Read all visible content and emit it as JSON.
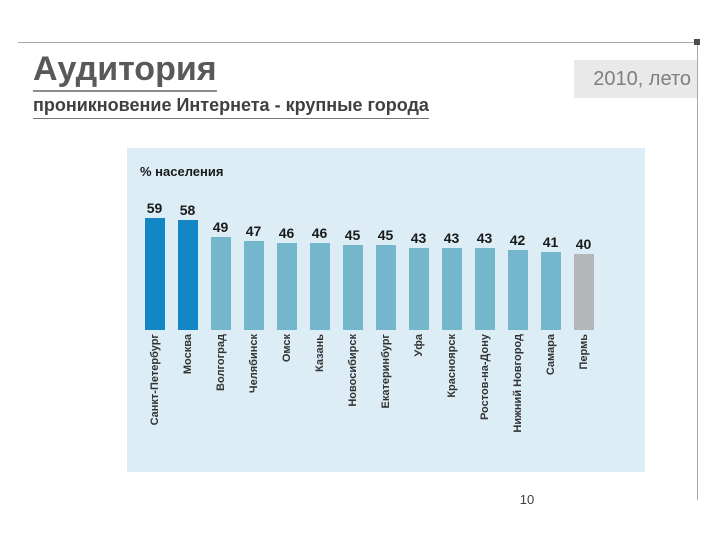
{
  "slide": {
    "title": "Аудитория",
    "subtitle": "проникновение Интернета - крупные города",
    "date_label": "2010, лето",
    "page_number": "10"
  },
  "chart_data": {
    "type": "bar",
    "title": "% населения",
    "categories": [
      "Санкт-Петербург",
      "Москва",
      "Волгоград",
      "Челябинск",
      "Омск",
      "Казань",
      "Новосибирск",
      "Екатеринбург",
      "Уфа",
      "Красноярск",
      "Ростов-на-Дону",
      "Нижний Новгород",
      "Самара",
      "Пермь"
    ],
    "values": [
      59,
      58,
      49,
      47,
      46,
      46,
      45,
      45,
      43,
      43,
      43,
      42,
      41,
      40
    ],
    "xlabel": "",
    "ylabel": "% населения",
    "ylim": [
      0,
      59
    ],
    "grid": false,
    "legend": false,
    "bar_color_roles": [
      "highlight",
      "highlight",
      "default",
      "default",
      "default",
      "default",
      "default",
      "default",
      "default",
      "default",
      "default",
      "default",
      "default",
      "muted"
    ],
    "colors": {
      "highlight": "#1386c5",
      "default": "#74b7cd",
      "muted": "#b3b7b9",
      "panel_bg": "#dcedf6"
    }
  }
}
